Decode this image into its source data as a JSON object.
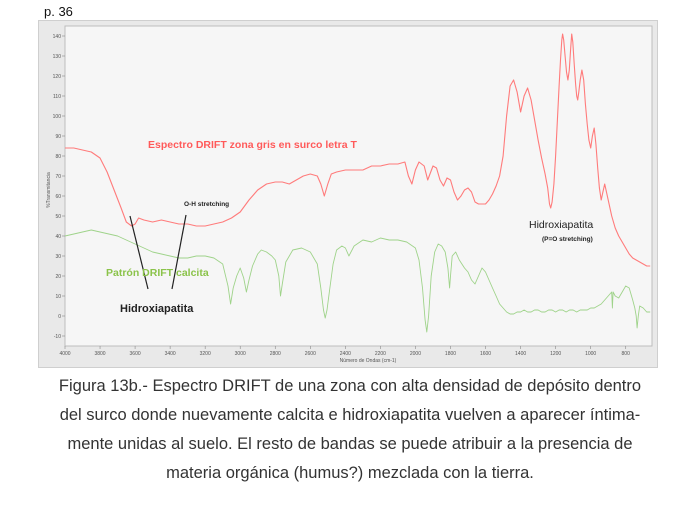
{
  "page": {
    "number_label": "p. 36"
  },
  "chart_data": {
    "type": "line",
    "xlabel": "Número de Ondas (cm-1)",
    "ylabel": "%Transmitancia",
    "xlim": [
      4000,
      650
    ],
    "ylim": [
      -15,
      145
    ],
    "x_reversed": true,
    "grid": false,
    "x_ticks": [
      {
        "v": 4000,
        "t": "4000"
      },
      {
        "v": 3800,
        "t": "3800"
      },
      {
        "v": 3600,
        "t": "3600"
      },
      {
        "v": 3400,
        "t": "3400"
      },
      {
        "v": 3200,
        "t": "3200"
      },
      {
        "v": 3000,
        "t": "3000"
      },
      {
        "v": 2800,
        "t": "2800"
      },
      {
        "v": 2600,
        "t": "2600"
      },
      {
        "v": 2400,
        "t": "2400"
      },
      {
        "v": 2200,
        "t": "2200"
      },
      {
        "v": 2000,
        "t": "2000"
      },
      {
        "v": 1800,
        "t": "1800"
      },
      {
        "v": 1600,
        "t": "1600"
      },
      {
        "v": 1400,
        "t": "1400"
      },
      {
        "v": 1200,
        "t": "1200"
      },
      {
        "v": 1000,
        "t": "1000"
      },
      {
        "v": 800,
        "t": "800"
      }
    ],
    "y_ticks": [
      {
        "v": 140,
        "t": "140"
      },
      {
        "v": 130,
        "t": "130"
      },
      {
        "v": 120,
        "t": "120"
      },
      {
        "v": 110,
        "t": "110"
      },
      {
        "v": 100,
        "t": "100"
      },
      {
        "v": 90,
        "t": "90"
      },
      {
        "v": 80,
        "t": "80"
      },
      {
        "v": 70,
        "t": "70"
      },
      {
        "v": 60,
        "t": "60"
      },
      {
        "v": 50,
        "t": "50"
      },
      {
        "v": 40,
        "t": "40"
      },
      {
        "v": 30,
        "t": "30"
      },
      {
        "v": 20,
        "t": "20"
      },
      {
        "v": 10,
        "t": "10"
      },
      {
        "v": 0,
        "t": "0"
      },
      {
        "v": -10,
        "t": "-10"
      }
    ],
    "series": [
      {
        "name": "Espectro DRIFT zona gris en surco letra T",
        "color": "#ff7b7b",
        "points": [
          [
            4000,
            84
          ],
          [
            3950,
            84
          ],
          [
            3900,
            83
          ],
          [
            3850,
            82
          ],
          [
            3800,
            79
          ],
          [
            3760,
            72
          ],
          [
            3720,
            63
          ],
          [
            3680,
            54
          ],
          [
            3650,
            47
          ],
          [
            3620,
            45
          ],
          [
            3600,
            46
          ],
          [
            3580,
            49
          ],
          [
            3550,
            48
          ],
          [
            3500,
            47
          ],
          [
            3450,
            48
          ],
          [
            3400,
            47
          ],
          [
            3350,
            46
          ],
          [
            3300,
            46
          ],
          [
            3250,
            45
          ],
          [
            3200,
            45
          ],
          [
            3150,
            46
          ],
          [
            3100,
            47
          ],
          [
            3050,
            49
          ],
          [
            3000,
            52
          ],
          [
            2950,
            58
          ],
          [
            2900,
            63
          ],
          [
            2850,
            66
          ],
          [
            2800,
            67
          ],
          [
            2760,
            67
          ],
          [
            2720,
            66
          ],
          [
            2680,
            68
          ],
          [
            2640,
            70
          ],
          [
            2600,
            71
          ],
          [
            2560,
            70
          ],
          [
            2540,
            66
          ],
          [
            2520,
            60
          ],
          [
            2500,
            66
          ],
          [
            2480,
            71
          ],
          [
            2450,
            72
          ],
          [
            2400,
            73
          ],
          [
            2350,
            73
          ],
          [
            2300,
            73
          ],
          [
            2250,
            75
          ],
          [
            2200,
            75
          ],
          [
            2150,
            76
          ],
          [
            2100,
            76
          ],
          [
            2060,
            77
          ],
          [
            2040,
            70
          ],
          [
            2020,
            66
          ],
          [
            2000,
            73
          ],
          [
            1980,
            77
          ],
          [
            1950,
            75
          ],
          [
            1930,
            68
          ],
          [
            1900,
            75
          ],
          [
            1880,
            74
          ],
          [
            1860,
            68
          ],
          [
            1840,
            65
          ],
          [
            1820,
            69
          ],
          [
            1800,
            68
          ],
          [
            1780,
            62
          ],
          [
            1760,
            58
          ],
          [
            1740,
            60
          ],
          [
            1720,
            63
          ],
          [
            1700,
            64
          ],
          [
            1680,
            62
          ],
          [
            1660,
            57
          ],
          [
            1640,
            56
          ],
          [
            1620,
            56
          ],
          [
            1600,
            56
          ],
          [
            1580,
            58
          ],
          [
            1560,
            61
          ],
          [
            1540,
            65
          ],
          [
            1520,
            70
          ],
          [
            1500,
            80
          ],
          [
            1480,
            100
          ],
          [
            1460,
            115
          ],
          [
            1440,
            118
          ],
          [
            1420,
            112
          ],
          [
            1400,
            102
          ],
          [
            1380,
            110
          ],
          [
            1360,
            114
          ],
          [
            1340,
            108
          ],
          [
            1320,
            98
          ],
          [
            1300,
            88
          ],
          [
            1280,
            79
          ],
          [
            1260,
            71
          ],
          [
            1245,
            64
          ],
          [
            1235,
            56
          ],
          [
            1228,
            54
          ],
          [
            1220,
            57
          ],
          [
            1210,
            66
          ],
          [
            1200,
            80
          ],
          [
            1190,
            98
          ],
          [
            1180,
            115
          ],
          [
            1172,
            128
          ],
          [
            1165,
            138
          ],
          [
            1160,
            141
          ],
          [
            1154,
            138
          ],
          [
            1146,
            130
          ],
          [
            1138,
            122
          ],
          [
            1130,
            118
          ],
          [
            1122,
            123
          ],
          [
            1114,
            134
          ],
          [
            1108,
            141
          ],
          [
            1102,
            137
          ],
          [
            1094,
            126
          ],
          [
            1086,
            116
          ],
          [
            1080,
            110
          ],
          [
            1074,
            108
          ],
          [
            1068,
            112
          ],
          [
            1060,
            118
          ],
          [
            1050,
            123
          ],
          [
            1040,
            118
          ],
          [
            1030,
            106
          ],
          [
            1020,
            96
          ],
          [
            1010,
            88
          ],
          [
            1000,
            84
          ],
          [
            990,
            90
          ],
          [
            980,
            94
          ],
          [
            970,
            86
          ],
          [
            960,
            74
          ],
          [
            950,
            64
          ],
          [
            940,
            58
          ],
          [
            930,
            62
          ],
          [
            920,
            66
          ],
          [
            900,
            58
          ],
          [
            880,
            50
          ],
          [
            860,
            44
          ],
          [
            840,
            40
          ],
          [
            820,
            37
          ],
          [
            800,
            34
          ],
          [
            780,
            31
          ],
          [
            760,
            29
          ],
          [
            740,
            28
          ],
          [
            720,
            27
          ],
          [
            700,
            26
          ],
          [
            680,
            25
          ],
          [
            660,
            25
          ]
        ]
      },
      {
        "name": "Patrón DRIFT calcita",
        "color": "#9fd38a",
        "points": [
          [
            4000,
            40
          ],
          [
            3950,
            41
          ],
          [
            3900,
            42
          ],
          [
            3850,
            43
          ],
          [
            3800,
            42
          ],
          [
            3750,
            41
          ],
          [
            3700,
            40
          ],
          [
            3650,
            38
          ],
          [
            3600,
            36
          ],
          [
            3550,
            34
          ],
          [
            3500,
            32
          ],
          [
            3450,
            31
          ],
          [
            3400,
            30
          ],
          [
            3350,
            29
          ],
          [
            3300,
            29
          ],
          [
            3250,
            30
          ],
          [
            3200,
            30
          ],
          [
            3150,
            29
          ],
          [
            3100,
            26
          ],
          [
            3070,
            15
          ],
          [
            3055,
            6
          ],
          [
            3040,
            14
          ],
          [
            3020,
            20
          ],
          [
            3000,
            24
          ],
          [
            2980,
            19
          ],
          [
            2965,
            12
          ],
          [
            2950,
            18
          ],
          [
            2930,
            25
          ],
          [
            2900,
            31
          ],
          [
            2880,
            33
          ],
          [
            2850,
            32
          ],
          [
            2820,
            30
          ],
          [
            2800,
            28
          ],
          [
            2780,
            20
          ],
          [
            2770,
            10
          ],
          [
            2760,
            16
          ],
          [
            2740,
            27
          ],
          [
            2700,
            33
          ],
          [
            2650,
            34
          ],
          [
            2600,
            32
          ],
          [
            2560,
            26
          ],
          [
            2540,
            14
          ],
          [
            2525,
            3
          ],
          [
            2515,
            -1
          ],
          [
            2505,
            3
          ],
          [
            2490,
            13
          ],
          [
            2470,
            26
          ],
          [
            2450,
            33
          ],
          [
            2420,
            35
          ],
          [
            2400,
            34
          ],
          [
            2380,
            30
          ],
          [
            2350,
            35
          ],
          [
            2300,
            38
          ],
          [
            2250,
            37
          ],
          [
            2200,
            39
          ],
          [
            2150,
            38
          ],
          [
            2100,
            38
          ],
          [
            2050,
            37
          ],
          [
            2000,
            34
          ],
          [
            1980,
            28
          ],
          [
            1960,
            14
          ],
          [
            1945,
            -2
          ],
          [
            1935,
            -8
          ],
          [
            1925,
            0
          ],
          [
            1910,
            20
          ],
          [
            1890,
            32
          ],
          [
            1870,
            36
          ],
          [
            1850,
            35
          ],
          [
            1830,
            32
          ],
          [
            1815,
            24
          ],
          [
            1805,
            14
          ],
          [
            1800,
            20
          ],
          [
            1790,
            30
          ],
          [
            1770,
            32
          ],
          [
            1750,
            28
          ],
          [
            1720,
            24
          ],
          [
            1700,
            22
          ],
          [
            1680,
            18
          ],
          [
            1660,
            16
          ],
          [
            1640,
            20
          ],
          [
            1620,
            24
          ],
          [
            1600,
            22
          ],
          [
            1580,
            18
          ],
          [
            1560,
            14
          ],
          [
            1540,
            10
          ],
          [
            1520,
            6
          ],
          [
            1500,
            4
          ],
          [
            1480,
            2
          ],
          [
            1460,
            1
          ],
          [
            1440,
            1
          ],
          [
            1420,
            2
          ],
          [
            1400,
            2
          ],
          [
            1380,
            3
          ],
          [
            1360,
            2
          ],
          [
            1340,
            2
          ],
          [
            1320,
            3
          ],
          [
            1300,
            3
          ],
          [
            1280,
            2
          ],
          [
            1260,
            2
          ],
          [
            1240,
            3
          ],
          [
            1220,
            3
          ],
          [
            1200,
            2
          ],
          [
            1180,
            3
          ],
          [
            1160,
            3
          ],
          [
            1140,
            2
          ],
          [
            1120,
            3
          ],
          [
            1100,
            3
          ],
          [
            1080,
            2
          ],
          [
            1060,
            3
          ],
          [
            1040,
            3
          ],
          [
            1020,
            3
          ],
          [
            1000,
            4
          ],
          [
            980,
            4
          ],
          [
            960,
            5
          ],
          [
            940,
            6
          ],
          [
            920,
            8
          ],
          [
            900,
            10
          ],
          [
            880,
            12
          ],
          [
            876,
            4
          ],
          [
            872,
            12
          ],
          [
            860,
            10
          ],
          [
            840,
            9
          ],
          [
            820,
            12
          ],
          [
            800,
            15
          ],
          [
            780,
            14
          ],
          [
            760,
            8
          ],
          [
            748,
            4
          ],
          [
            740,
            0
          ],
          [
            735,
            -6
          ],
          [
            728,
            0
          ],
          [
            720,
            5
          ],
          [
            700,
            4
          ],
          [
            680,
            2
          ],
          [
            660,
            2
          ]
        ]
      }
    ],
    "annotations": [
      {
        "id": "red",
        "text": "Espectro DRIFT zona gris en surco letra T",
        "color": "#ff5a5a"
      },
      {
        "id": "oh",
        "text": "O-H stretching",
        "color": "#222222"
      },
      {
        "id": "hidro_right",
        "text": "Hidroxiapatita",
        "color": "#222222"
      },
      {
        "id": "po",
        "text": "(P=O stretching)",
        "color": "#222222"
      },
      {
        "id": "green",
        "text": "Patrón DRIFT calcita",
        "color": "#8bc34a"
      },
      {
        "id": "hidro_left",
        "text": "Hidroxiapatita",
        "color": "#222222"
      }
    ]
  },
  "caption": {
    "lines": [
      "Figura 13b.- Espectro DRIFT de una zona con alta densidad de depósito dentro",
      "del surco donde nuevamente calcita e hidroxiapatita vuelven a aparecer íntima-",
      "mente unidas al suelo. El resto de bandas se puede atribuir a la presencia de",
      "materia orgánica (humus?) mezclada con la tierra."
    ]
  }
}
